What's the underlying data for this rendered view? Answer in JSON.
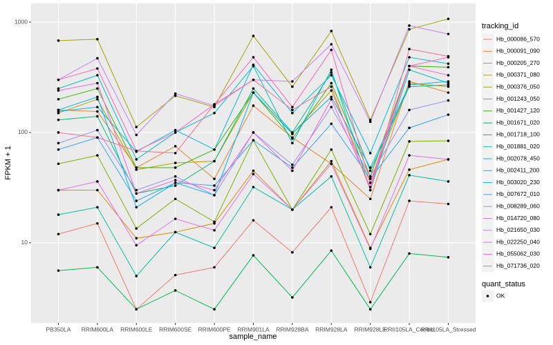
{
  "chart_data": {
    "type": "line",
    "x_label": "sample_name",
    "y_label": "FPKM + 1",
    "log_y": true,
    "grid": true,
    "point_color": "#000000",
    "legend_title": "tracking_id",
    "legend_position": "right",
    "status_legend": {
      "title": "quant_status",
      "labels": [
        "OK"
      ]
    },
    "categories": [
      "PB350LA",
      "RRIM600LA",
      "RRIM600LE",
      "RRIM600SE",
      "RRIM600PE",
      "RRIM901LA",
      "RRIM928BA",
      "RRIM928LA",
      "RRIM928LE",
      "RRII105LA_Control",
      "RRII105LA_Stressed"
    ],
    "ylim": [
      1.88,
      1476
    ],
    "yticks": [
      10,
      100,
      1000
    ],
    "series": [
      {
        "name": "Hb_000086_570",
        "color": "#F8766D",
        "values": [
          12,
          15,
          2.5,
          5.1,
          6,
          16,
          8.2,
          21,
          2.9,
          24,
          22.5
        ]
      },
      {
        "name": "Hb_000091_090",
        "color": "#EA8331",
        "values": [
          160,
          155,
          48,
          75,
          38,
          175,
          90,
          52,
          25,
          290,
          230
        ]
      },
      {
        "name": "Hb_000205_270",
        "color": "#D89000",
        "values": [
          30,
          30,
          11,
          12.5,
          15,
          45,
          20,
          55,
          9,
          46,
          57
        ]
      },
      {
        "name": "Hb_000371_080",
        "color": "#C09B00",
        "values": [
          150,
          200,
          46,
          53,
          55,
          230,
          97,
          240,
          35,
          280,
          260
        ]
      },
      {
        "name": "Hb_000376_050",
        "color": "#A3A500",
        "values": [
          680,
          700,
          112,
          215,
          170,
          750,
          260,
          830,
          130,
          860,
          1070
        ]
      },
      {
        "name": "Hb_001243_050",
        "color": "#7CAE00",
        "values": [
          52,
          62,
          13.5,
          25,
          15.5,
          85,
          20,
          70,
          12,
          83,
          84
        ]
      },
      {
        "name": "Hb_001427_120",
        "color": "#39B600",
        "values": [
          200,
          250,
          48,
          48,
          70,
          230,
          88,
          280,
          40,
          400,
          390
        ]
      },
      {
        "name": "Hb_001671_020",
        "color": "#00BB4E",
        "values": [
          5.6,
          6,
          2.5,
          3.7,
          2.5,
          7.7,
          3.2,
          8.5,
          2.5,
          8,
          7.4
        ]
      },
      {
        "name": "Hb_001718_100",
        "color": "#00BF7D",
        "values": [
          130,
          140,
          28,
          33,
          55,
          250,
          100,
          350,
          45,
          260,
          270
        ]
      },
      {
        "name": "Hb_001881_020",
        "color": "#00C1A3",
        "values": [
          18,
          21,
          5,
          12.5,
          9,
          32,
          20,
          40,
          6,
          41,
          36
        ]
      },
      {
        "name": "Hb_002078_450",
        "color": "#00BFC4",
        "values": [
          250,
          330,
          57,
          100,
          150,
          400,
          80,
          370,
          30,
          370,
          280
        ]
      },
      {
        "name": "Hb_002411_200",
        "color": "#00BAE0",
        "values": [
          155,
          170,
          67,
          105,
          70,
          410,
          150,
          330,
          65,
          480,
          420
        ]
      },
      {
        "name": "Hb_003020_230",
        "color": "#00B0F6",
        "values": [
          160,
          210,
          21,
          35,
          27,
          230,
          98,
          210,
          48,
          270,
          290
        ]
      },
      {
        "name": "Hb_007672_010",
        "color": "#35A2FF",
        "values": [
          70,
          90,
          24,
          35,
          33,
          85,
          48,
          120,
          38,
          110,
          145
        ]
      },
      {
        "name": "Hb_008289_060",
        "color": "#9590FF",
        "values": [
          80,
          105,
          30,
          40,
          27,
          100,
          51,
          170,
          40,
          160,
          195
        ]
      },
      {
        "name": "Hb_014720_080",
        "color": "#C77CFF",
        "values": [
          300,
          470,
          95,
          225,
          175,
          300,
          290,
          630,
          125,
          930,
          780
        ]
      },
      {
        "name": "Hb_021650_030",
        "color": "#E76BF3",
        "values": [
          30,
          36,
          9.5,
          16.5,
          13,
          42,
          20,
          52,
          8.8,
          62,
          57
        ]
      },
      {
        "name": "Hb_022250_040",
        "color": "#FA62DB",
        "values": [
          240,
          280,
          28,
          37,
          30,
          100,
          45,
          200,
          32,
          400,
          330
        ]
      },
      {
        "name": "Hb_055062_030",
        "color": "#FF62BC",
        "values": [
          300,
          380,
          68,
          100,
          180,
          480,
          170,
          560,
          35,
          400,
          480
        ]
      },
      {
        "name": "Hb_071736_020",
        "color": "#FF6C91",
        "values": [
          100,
          90,
          68,
          65,
          180,
          300,
          160,
          260,
          30,
          570,
          490
        ]
      }
    ]
  }
}
